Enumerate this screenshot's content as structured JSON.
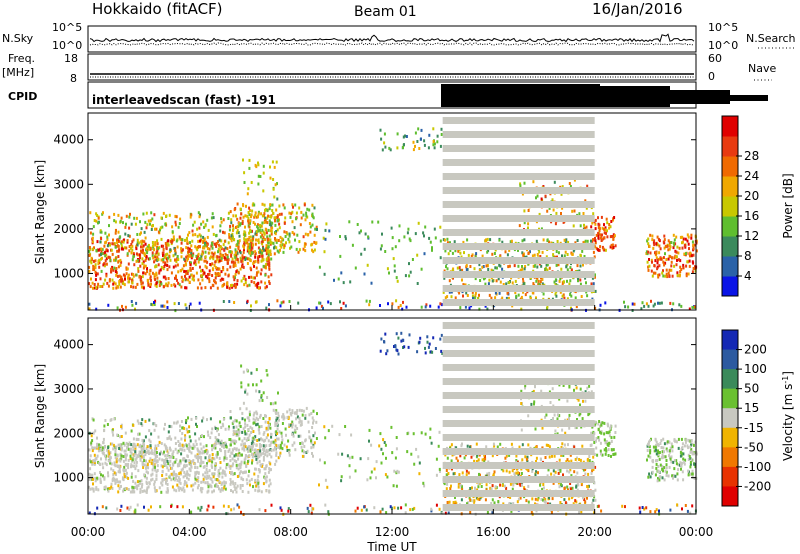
{
  "header": {
    "site": "Hokkaido (fitACF)",
    "beam": "Beam 01",
    "date": "16/Jan/2016"
  },
  "noise_panel": {
    "left_label": "N.Sky",
    "left_ticks": [
      "10^5",
      "10^0"
    ],
    "right_ticks": [
      "10^5",
      "10^0"
    ],
    "right_label": "N.Search"
  },
  "freq_panel": {
    "label_top": "Freq.",
    "label_bottom": "[MHz]",
    "left_ticks": [
      "18",
      "8"
    ],
    "right_ticks": [
      "60",
      "0"
    ],
    "right_label": "Nave"
  },
  "cpid_panel": {
    "label": "CPID",
    "text": "interleavedscan (fast) -191"
  },
  "time_axis": {
    "label": "Time UT",
    "ticks": [
      "00:00",
      "04:00",
      "08:00",
      "12:00",
      "16:00",
      "20:00",
      "00:00"
    ]
  },
  "chart_data": [
    {
      "type": "heatmap",
      "name": "power",
      "ylabel": "Slant Range [km]",
      "yticks": [
        1000,
        2000,
        3000,
        4000
      ],
      "ylim": [
        180,
        4600
      ],
      "xlim_hours": [
        0,
        24
      ],
      "colorbar_label": "Power [dB]",
      "colorbar_ticks": [
        4,
        8,
        12,
        16,
        20,
        24,
        28
      ],
      "colorbar_colors": [
        "#0a14e6",
        "#2a62a8",
        "#3b8a5c",
        "#5fbe2f",
        "#c8c800",
        "#f0a800",
        "#f06a00",
        "#e83a10",
        "#e00000"
      ],
      "cleared_interval_hours": [
        14,
        20
      ]
    },
    {
      "type": "heatmap",
      "name": "velocity",
      "ylabel": "Slant Range [km]",
      "yticks": [
        1000,
        2000,
        3000,
        4000
      ],
      "ylim": [
        180,
        4600
      ],
      "xlim_hours": [
        0,
        24
      ],
      "colorbar_label": "Velocity [m s^-1]",
      "colorbar_ticks": [
        200,
        100,
        50,
        15,
        -15,
        -50,
        -100,
        -200
      ],
      "colorbar_colors": [
        "#1428b4",
        "#2c5aa0",
        "#3a8a5a",
        "#6ac030",
        "#c8c8c0",
        "#f0b400",
        "#f07800",
        "#e83200",
        "#e00000"
      ],
      "cleared_interval_hours": [
        14,
        20
      ]
    }
  ]
}
